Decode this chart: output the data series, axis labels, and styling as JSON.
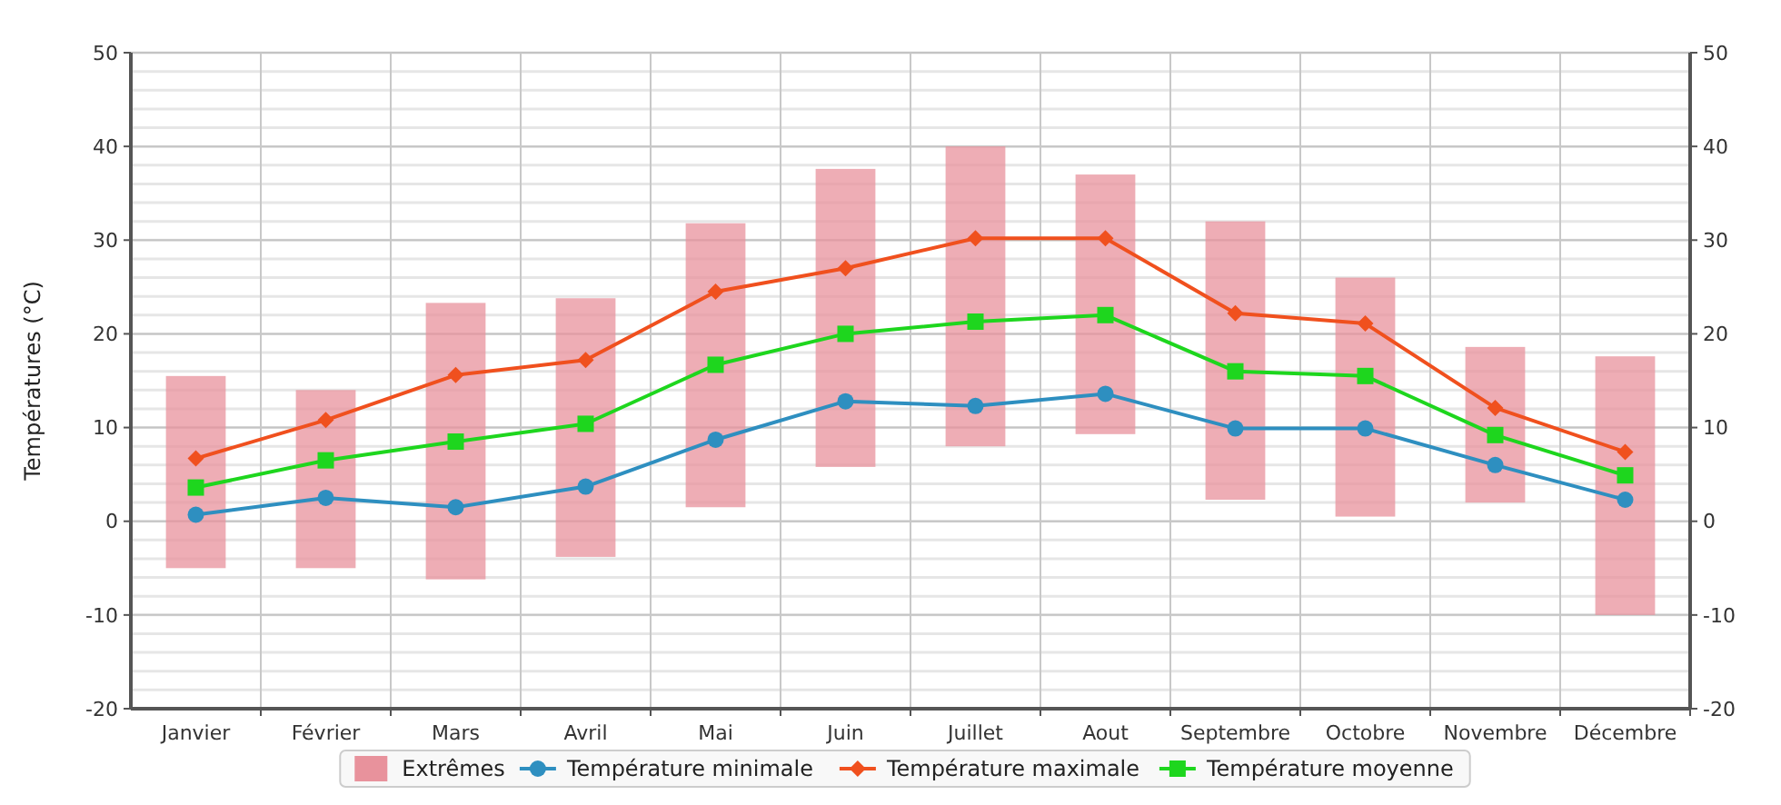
{
  "chart_data": {
    "type": "line",
    "ylabel": "Températures (°C)",
    "categories": [
      "Janvier",
      "Février",
      "Mars",
      "Avril",
      "Mai",
      "Juin",
      "Juillet",
      "Aout",
      "Septembre",
      "Octobre",
      "Novembre",
      "Décembre"
    ],
    "ylim": [
      -20,
      50
    ],
    "yticks": [
      -20,
      -10,
      0,
      10,
      20,
      30,
      40,
      50
    ],
    "y2lim": [
      -20,
      50
    ],
    "y2ticks": [
      -20,
      -10,
      0,
      10,
      20,
      30,
      40,
      50
    ],
    "grid": true,
    "legend": "bottom",
    "series": [
      {
        "name": "Extrêmes",
        "type": "bar",
        "color": "#e8929c",
        "base": [
          -5,
          -5,
          -6.2,
          -3.8,
          1.5,
          5.8,
          8,
          9.3,
          2.3,
          0.5,
          2,
          -10
        ],
        "values": [
          20.5,
          19,
          29.5,
          27.6,
          30.3,
          31.8,
          32,
          27.7,
          29.7,
          25.5,
          16.6,
          27.6
        ]
      },
      {
        "name": "Température minimale",
        "color": "#2e8fc0",
        "marker": "circle",
        "values": [
          0.7,
          2.5,
          1.5,
          3.7,
          8.7,
          12.8,
          12.3,
          13.6,
          9.9,
          9.9,
          6,
          2.3
        ]
      },
      {
        "name": "Température maximale",
        "color": "#f0501e",
        "marker": "diamond",
        "values": [
          6.7,
          10.8,
          15.6,
          17.2,
          24.5,
          27,
          30.2,
          30.2,
          22.2,
          21.1,
          12.1,
          7.4
        ]
      },
      {
        "name": "Température moyenne",
        "color": "#1ed61e",
        "marker": "square",
        "values": [
          3.6,
          6.5,
          8.5,
          10.4,
          16.7,
          20,
          21.3,
          22,
          16,
          15.5,
          9.2,
          4.9
        ]
      }
    ]
  }
}
